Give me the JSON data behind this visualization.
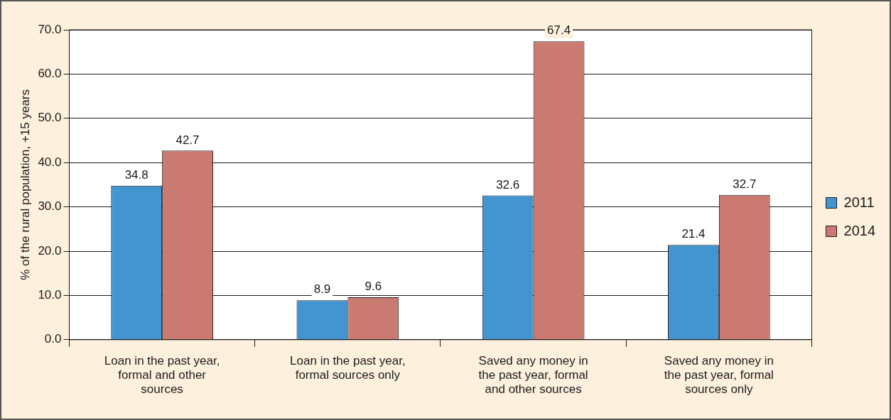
{
  "chart_data": {
    "type": "bar",
    "ylabel": "% of the rural population, +15 years",
    "categories": [
      "Loan in the past year, formal and other sources",
      "Loan in the past year, formal sources only",
      "Saved any money in the past year, formal and other sources",
      "Saved any money in the past year, formal sources only"
    ],
    "series": [
      {
        "name": "2011",
        "color": "#4395d1",
        "values": [
          34.8,
          8.9,
          32.6,
          21.4
        ]
      },
      {
        "name": "2014",
        "color": "#ca7a70",
        "values": [
          42.7,
          9.6,
          67.4,
          32.7
        ]
      }
    ],
    "ylim": [
      0,
      70
    ],
    "yticks": [
      {
        "value": 0,
        "label": "0.0"
      },
      {
        "value": 10,
        "label": "10.0"
      },
      {
        "value": 20,
        "label": "20.0"
      },
      {
        "value": 30,
        "label": "30.0"
      },
      {
        "value": 40,
        "label": "40.0"
      },
      {
        "value": 50,
        "label": "50.0"
      },
      {
        "value": 60,
        "label": "60.0"
      },
      {
        "value": 70,
        "label": "70.0"
      }
    ],
    "grid": "y",
    "legend": "right",
    "data_labels": true
  }
}
